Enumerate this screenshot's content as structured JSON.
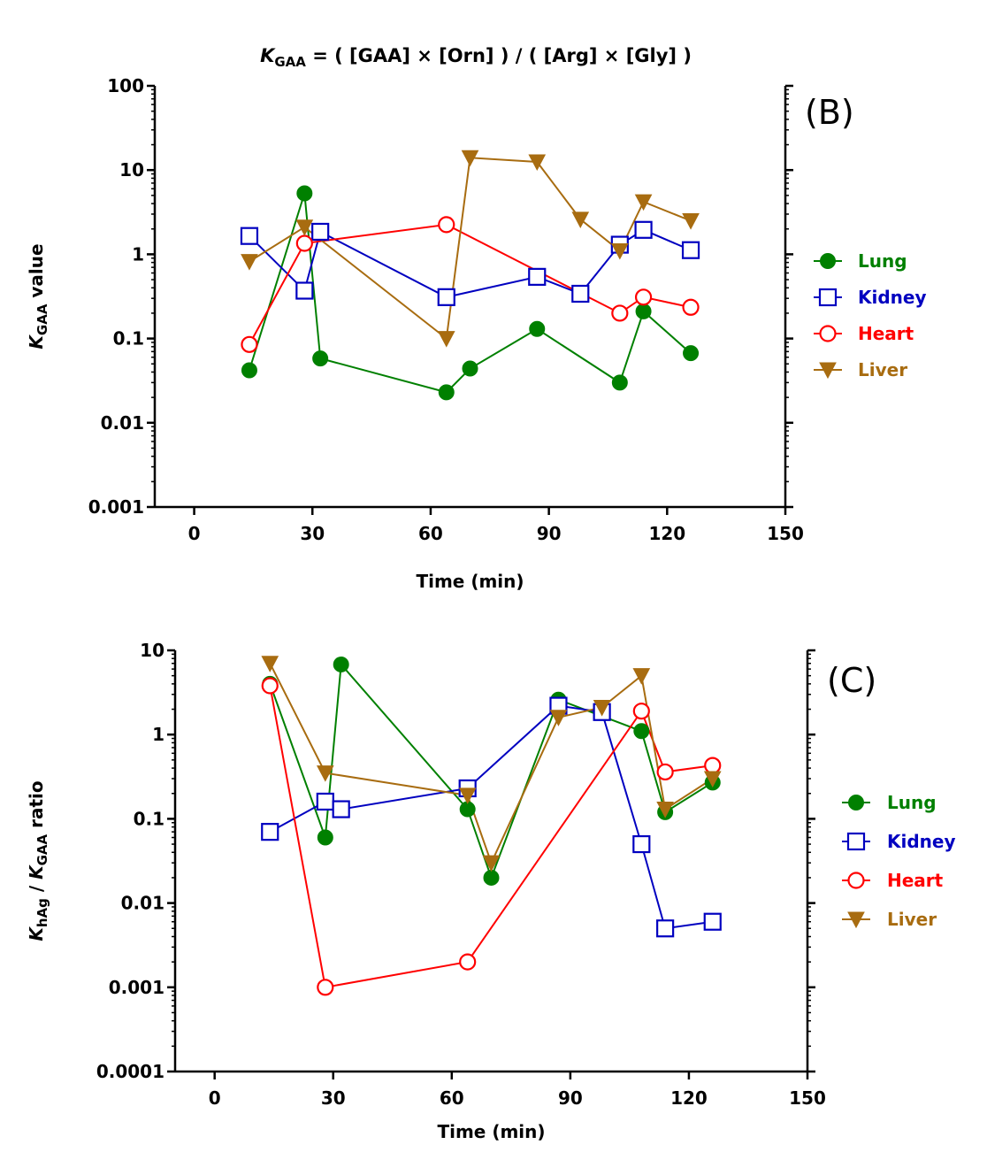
{
  "figure_title": {
    "k": "K",
    "sub": "GAA",
    "formula": " = ( [GAA] × [Orn] ) / ( [Arg] ×  [Gly] )"
  },
  "colors": {
    "Lung": "#008000",
    "Kidney": "#0000c0",
    "Heart": "#ff0000",
    "Liver": "#a86c10"
  },
  "chart_data": [
    {
      "type": "line",
      "panel_label": "(B)",
      "xlabel": "Time (min)",
      "ylabel": {
        "k": "K",
        "sub": "GAA",
        "rest": " value"
      },
      "xlim": [
        -10,
        150
      ],
      "xticks": [
        0,
        30,
        60,
        90,
        120,
        150
      ],
      "xtick_labels": [
        "0",
        "30",
        "60",
        "90",
        "120",
        "150"
      ],
      "y_scale": "log",
      "ylim": [
        0.001,
        100
      ],
      "yticks": [
        0.001,
        0.01,
        0.1,
        1,
        10,
        100
      ],
      "ytick_labels": [
        "0.001",
        "0.01",
        "0.1",
        "1",
        "10",
        "100"
      ],
      "legend_position": "right",
      "series": [
        {
          "name": "Lung",
          "marker": "filled-circle",
          "x": [
            14,
            28,
            32,
            64,
            70,
            87,
            108,
            114,
            126
          ],
          "y": [
            0.042,
            5.3,
            0.058,
            0.023,
            0.044,
            0.13,
            0.03,
            0.21,
            0.067
          ]
        },
        {
          "name": "Kidney",
          "marker": "open-square",
          "x": [
            14,
            28,
            32,
            64,
            87,
            98,
            108,
            114,
            126
          ],
          "y": [
            1.65,
            0.37,
            1.85,
            0.31,
            0.54,
            0.34,
            1.3,
            1.95,
            1.12
          ]
        },
        {
          "name": "Heart",
          "marker": "open-circle",
          "x": [
            14,
            28,
            64,
            108,
            114,
            126
          ],
          "y": [
            0.085,
            1.35,
            2.25,
            0.2,
            0.31,
            0.235
          ]
        },
        {
          "name": "Liver",
          "marker": "filled-triangle-down",
          "x": [
            14,
            28,
            64,
            70,
            87,
            98,
            108,
            114,
            126
          ],
          "y": [
            0.82,
            2.1,
            0.1,
            14,
            12.5,
            2.6,
            1.1,
            4.2,
            2.5
          ]
        }
      ]
    },
    {
      "type": "line",
      "panel_label": "(C)",
      "xlabel": "Time (min)",
      "ylabel": {
        "k1": "K",
        "sub1": "hAg",
        "mid": " / ",
        "k2": "K",
        "sub2": "GAA",
        "rest": " ratio"
      },
      "xlim": [
        -10,
        150
      ],
      "xticks": [
        0,
        30,
        60,
        90,
        120,
        150
      ],
      "xtick_labels": [
        "0",
        "30",
        "60",
        "90",
        "120",
        "150"
      ],
      "y_scale": "log",
      "ylim": [
        0.0001,
        10
      ],
      "yticks": [
        0.0001,
        0.001,
        0.01,
        0.1,
        1,
        10
      ],
      "ytick_labels": [
        "0.0001",
        "0.001",
        "0.01",
        "0.1",
        "1",
        "10"
      ],
      "legend_position": "right",
      "series": [
        {
          "name": "Lung",
          "marker": "filled-circle",
          "x": [
            14,
            28,
            32,
            64,
            70,
            87,
            108,
            114,
            126
          ],
          "y": [
            4,
            0.06,
            6.8,
            0.13,
            0.02,
            2.6,
            1.1,
            0.12,
            0.27
          ]
        },
        {
          "name": "Kidney",
          "marker": "open-square",
          "x": [
            14,
            28,
            32,
            64,
            87,
            98,
            108,
            114,
            126
          ],
          "y": [
            0.07,
            0.16,
            0.13,
            0.23,
            2.2,
            1.85,
            0.05,
            0.005,
            0.006
          ]
        },
        {
          "name": "Heart",
          "marker": "open-circle",
          "x": [
            14,
            28,
            64,
            108,
            114,
            126
          ],
          "y": [
            3.8,
            0.001,
            0.002,
            1.9,
            0.36,
            0.43
          ]
        },
        {
          "name": "Liver",
          "marker": "filled-triangle-down",
          "x": [
            14,
            28,
            64,
            70,
            87,
            98,
            108,
            114,
            126
          ],
          "y": [
            7,
            0.35,
            0.19,
            0.03,
            1.6,
            2.1,
            5,
            0.13,
            0.3
          ]
        }
      ]
    }
  ]
}
